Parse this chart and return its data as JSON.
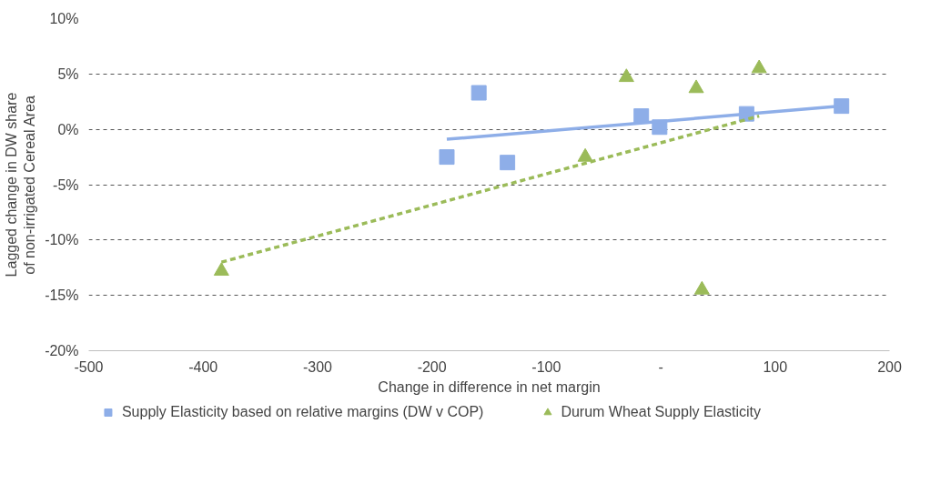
{
  "chart_data": {
    "type": "scatter",
    "xlabel": "Change in difference in net margin",
    "ylabel": "Lagged change in DW share of non-irrigated Cereal Area",
    "xlim": [
      -500,
      200
    ],
    "xticks": [
      -500,
      -400,
      -300,
      -200,
      -100,
      {
        "value": 0,
        "label": "-"
      },
      100,
      200
    ],
    "ylim": [
      -20,
      10
    ],
    "yticks": [
      {
        "value": -20,
        "label": "-20%"
      },
      {
        "value": -15,
        "label": "-15%"
      },
      {
        "value": -10,
        "label": "-10%"
      },
      {
        "value": -5,
        "label": "-5%"
      },
      {
        "value": 0,
        "label": "0%"
      },
      {
        "value": 5,
        "label": "5%"
      },
      {
        "value": 10,
        "label": "10%"
      }
    ],
    "grid": "y",
    "legend": "bottom",
    "series": [
      {
        "name": "Supply Elasticity based on relative margins (DW v COP)",
        "marker": "square",
        "color": "#8eaee8",
        "x": [
          -187,
          -159,
          -134,
          -17,
          -1,
          75,
          158
        ],
        "values": [
          -2.5,
          3.3,
          -3.0,
          1.2,
          0.2,
          1.4,
          2.1
        ]
      },
      {
        "name": "Durum Wheat Supply Elasticity",
        "marker": "triangle",
        "color": "#9bbb59",
        "x": [
          -384,
          -66,
          -30,
          31,
          36,
          86
        ],
        "values": [
          -12.8,
          -2.5,
          4.7,
          3.7,
          -14.5,
          5.5
        ]
      },
      {
        "type": "line",
        "line_style": "solid",
        "color": "#8eaee8",
        "x": [
          -187,
          158
        ],
        "values": [
          -0.9,
          2.1
        ]
      },
      {
        "type": "line",
        "line_style": "dashed",
        "color": "#9bbb59",
        "x": [
          -384,
          86
        ],
        "values": [
          -12.0,
          1.2
        ]
      }
    ]
  }
}
